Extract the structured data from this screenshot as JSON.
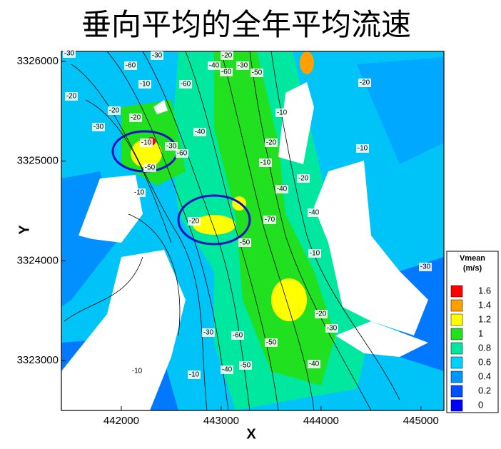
{
  "chart_data": {
    "type": "contour",
    "title": "垂向平均的全年平均流速",
    "xlabel": "X",
    "ylabel": "Y",
    "xlim": [
      441400,
      445230
    ],
    "ylim": [
      3322500,
      3326100
    ],
    "xticks": [
      442000,
      443000,
      444000,
      445000
    ],
    "yticks": [
      3323000,
      3324000,
      3325000,
      3326000
    ],
    "colorbar": {
      "title": "Vmean",
      "unit": "(m/s)",
      "levels": [
        0,
        0.2,
        0.4,
        0.6,
        0.8,
        1,
        1.2,
        1.4,
        1.6
      ],
      "colors": [
        "#0000ff",
        "#0050ff",
        "#0096ff",
        "#00d2ff",
        "#00e8a0",
        "#20e020",
        "#ffff00",
        "#ffa000",
        "#ff0000"
      ]
    },
    "contour_labels": [
      -30,
      -60,
      -10,
      -30,
      -60,
      -40,
      -20,
      -30,
      -60,
      -50,
      -20,
      -20,
      -30,
      -20,
      -10,
      -40,
      -50,
      -30,
      -60,
      -10,
      -20,
      -10,
      -70,
      -40,
      -40,
      -10,
      -50,
      -20,
      -30,
      -60,
      -40,
      -50,
      -10,
      -20,
      -30,
      -10,
      -20,
      -10,
      -30,
      -40,
      -20,
      -50,
      -10
    ]
  }
}
